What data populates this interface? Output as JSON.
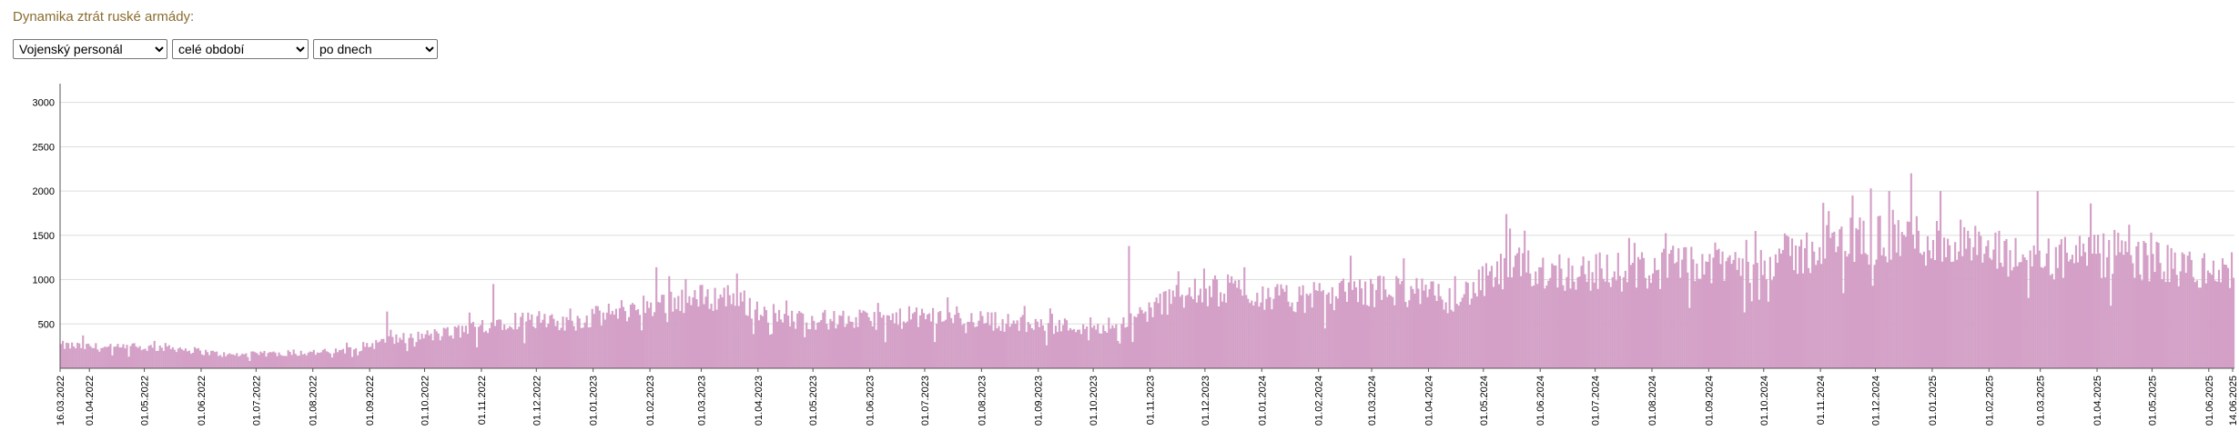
{
  "header": {
    "title": "Dynamika ztrát ruské armády:"
  },
  "controls": {
    "metric": {
      "selected": "Vojenský personál",
      "options": [
        "Vojenský personál"
      ]
    },
    "period": {
      "selected": "celé období",
      "options": [
        "celé období"
      ]
    },
    "step": {
      "selected": "po dnech",
      "options": [
        "po dnech"
      ]
    }
  },
  "colors": {
    "bar": "#d4a0c7",
    "bar_edge": "#c084b4",
    "grid": "#dddddd",
    "axis": "#555555"
  },
  "chart_data": {
    "type": "bar",
    "x_start": "2022-03-16",
    "x_end": "2025-06-14",
    "xlabel": "",
    "ylabel": "",
    "ylim": [
      0,
      3150
    ],
    "yticks": [
      500,
      1000,
      1500,
      2000,
      2500,
      3000
    ],
    "grid": true,
    "xtick_labels": [
      "16.03.2022",
      "01.04.2022",
      "01.05.2022",
      "01.06.2022",
      "01.07.2022",
      "01.08.2022",
      "01.09.2022",
      "01.10.2022",
      "01.11.2022",
      "01.12.2022",
      "01.01.2023",
      "01.02.2023",
      "01.03.2023",
      "01.04.2023",
      "01.05.2023",
      "01.06.2023",
      "01.07.2023",
      "01.08.2023",
      "01.09.2023",
      "01.10.2023",
      "01.11.2023",
      "01.12.2023",
      "01.01.2024",
      "01.02.2024",
      "01.03.2024",
      "01.04.2024",
      "01.05.2024",
      "01.06.2024",
      "01.07.2024",
      "01.08.2024",
      "01.09.2024",
      "01.10.2024",
      "01.11.2024",
      "01.12.2024",
      "01.01.2025",
      "01.02.2025",
      "01.03.2025",
      "01.04.2025",
      "01.05.2025",
      "01.06.2025",
      "14.06.2025"
    ],
    "monthly_levels": {
      "dates": [
        "2022-03",
        "2022-04",
        "2022-05",
        "2022-06",
        "2022-07",
        "2022-08",
        "2022-09",
        "2022-10",
        "2022-11",
        "2022-12",
        "2023-01",
        "2023-02",
        "2023-03",
        "2023-04",
        "2023-05",
        "2023-06",
        "2023-07",
        "2023-08",
        "2023-09",
        "2023-10",
        "2023-11",
        "2023-12",
        "2024-01",
        "2024-02",
        "2024-03",
        "2024-04",
        "2024-05",
        "2024-06",
        "2024-07",
        "2024-08",
        "2024-09",
        "2024-10",
        "2024-11",
        "2024-12",
        "2025-01",
        "2025-02",
        "2025-03",
        "2025-04",
        "2025-05",
        "2025-06"
      ],
      "values": [
        260,
        230,
        240,
        150,
        170,
        190,
        330,
        400,
        560,
        500,
        650,
        780,
        820,
        560,
        550,
        560,
        600,
        520,
        480,
        500,
        820,
        900,
        780,
        850,
        900,
        780,
        1150,
        1100,
        1100,
        1150,
        1200,
        1280,
        1450,
        1500,
        1400,
        1250,
        1250,
        1280,
        1150,
        1060
      ]
    },
    "peaks": [
      {
        "date": "2022-03-28",
        "value": 370
      },
      {
        "date": "2022-09-10",
        "value": 640
      },
      {
        "date": "2022-11-07",
        "value": 950
      },
      {
        "date": "2023-02-04",
        "value": 1140
      },
      {
        "date": "2023-03-20",
        "value": 1070
      },
      {
        "date": "2023-10-20",
        "value": 1380
      },
      {
        "date": "2024-02-18",
        "value": 1270
      },
      {
        "date": "2024-05-13",
        "value": 1740
      },
      {
        "date": "2024-11-18",
        "value": 1950
      },
      {
        "date": "2024-11-28",
        "value": 2030
      },
      {
        "date": "2024-12-20",
        "value": 2200
      },
      {
        "date": "2025-01-05",
        "value": 2000
      },
      {
        "date": "2025-02-27",
        "value": 2000
      },
      {
        "date": "2025-03-28",
        "value": 1860
      },
      {
        "date": "2025-04-30",
        "value": 1530
      }
    ]
  }
}
